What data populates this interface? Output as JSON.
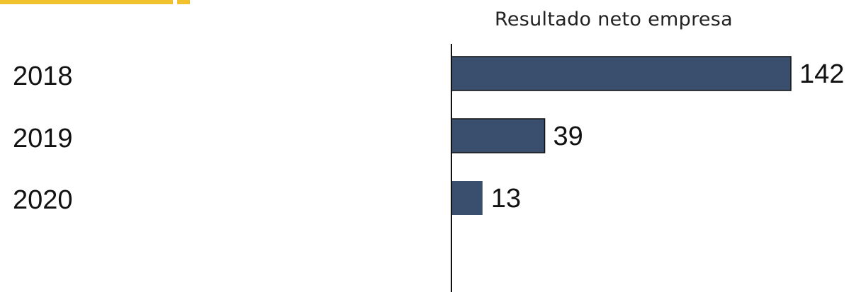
{
  "colors": {
    "accent": "#f2c12e",
    "bar_fill": "#3a4f6e",
    "bar_stroke": "#111111",
    "axis": "#111111",
    "text": "#111111"
  },
  "chart_data": {
    "type": "bar",
    "orientation": "horizontal",
    "title": "Resultado neto empresa",
    "categories": [
      "2018",
      "2019",
      "2020"
    ],
    "values": [
      142,
      39,
      13
    ],
    "value_labels": [
      "142",
      "39",
      "13"
    ],
    "xlim": [
      0,
      145
    ],
    "grid": false,
    "legend": "none"
  }
}
